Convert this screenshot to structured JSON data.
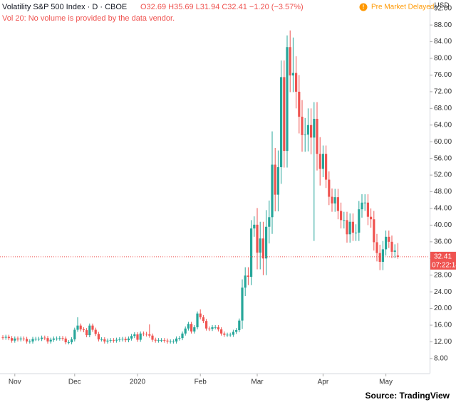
{
  "chart_data": {
    "type": "candlestick",
    "title": "Volatility S&P 500 Index · D · CBOE",
    "ohlc_text": "O32.69 H35.69 L31.94 C32.41 −1.20 (−3.57%)",
    "volume_note": "Vol 20: No volume is provided by the data vendor.",
    "status": "Pre Market Delayed",
    "currency": "USD",
    "last_price": {
      "value": 32.41,
      "label": "32.41"
    },
    "countdown": "07:22:14",
    "source": "Source: TradingView",
    "up_color": "#26a69a",
    "down_color": "#ef5350",
    "ylim": [
      4.4,
      94
    ],
    "yticks": [
      {
        "value": 8,
        "label": "8.00"
      },
      {
        "value": 12,
        "label": "12.00"
      },
      {
        "value": 16,
        "label": "16.00"
      },
      {
        "value": 20,
        "label": "20.00"
      },
      {
        "value": 24,
        "label": "24.00"
      },
      {
        "value": 28,
        "label": "28.00"
      },
      {
        "value": 32,
        "label": "32.00"
      },
      {
        "value": 36,
        "label": "36.00"
      },
      {
        "value": 40,
        "label": "40.00"
      },
      {
        "value": 44,
        "label": "44.00"
      },
      {
        "value": 48,
        "label": "48.00"
      },
      {
        "value": 52,
        "label": "52.00"
      },
      {
        "value": 56,
        "label": "56.00"
      },
      {
        "value": 60,
        "label": "60.00"
      },
      {
        "value": 64,
        "label": "64.00"
      },
      {
        "value": 68,
        "label": "68.00"
      },
      {
        "value": 72,
        "label": "72.00"
      },
      {
        "value": 76,
        "label": "76.00"
      },
      {
        "value": 80,
        "label": "80.00"
      },
      {
        "value": 84,
        "label": "84.00"
      },
      {
        "value": 88,
        "label": "88.00"
      },
      {
        "value": 92,
        "label": "92.00"
      }
    ],
    "categories": [
      null,
      null,
      null,
      null,
      "Nov",
      null,
      null,
      null,
      null,
      null,
      null,
      null,
      null,
      null,
      null,
      null,
      null,
      null,
      null,
      null,
      null,
      null,
      null,
      null,
      "Dec",
      null,
      null,
      null,
      null,
      null,
      null,
      null,
      null,
      null,
      null,
      null,
      null,
      null,
      null,
      null,
      null,
      null,
      null,
      null,
      null,
      "2020",
      null,
      null,
      null,
      null,
      null,
      null,
      null,
      null,
      null,
      null,
      null,
      null,
      null,
      null,
      null,
      null,
      null,
      null,
      null,
      null,
      "Feb",
      null,
      null,
      null,
      null,
      null,
      null,
      null,
      null,
      null,
      null,
      null,
      null,
      null,
      null,
      null,
      null,
      null,
      null,
      "Mar",
      null,
      null,
      null,
      null,
      null,
      null,
      null,
      null,
      null,
      null,
      null,
      null,
      null,
      null,
      null,
      null,
      null,
      null,
      null,
      null,
      null,
      "Apr",
      null,
      null,
      null,
      null,
      null,
      null,
      null,
      null,
      null,
      null,
      null,
      null,
      null,
      null,
      null,
      null,
      null,
      null,
      null,
      null,
      "May",
      null,
      null,
      null,
      null
    ],
    "open": [
      13.1,
      13.0,
      13.2,
      12.9,
      12.3,
      12.8,
      12.6,
      12.8,
      12.7,
      12.1,
      12.1,
      12.7,
      12.7,
      12.7,
      13.0,
      12.9,
      12.1,
      12.5,
      12.8,
      12.8,
      12.9,
      12.8,
      11.9,
      11.9,
      12.6,
      14.9,
      15.9,
      15.0,
      14.8,
      13.6,
      15.9,
      14.9,
      13.9,
      12.6,
      12.6,
      12.1,
      12.3,
      12.4,
      12.3,
      12.5,
      12.6,
      12.7,
      12.4,
      12.8,
      13.4,
      13.8,
      12.5,
      14.0,
      13.9,
      13.8,
      13.5,
      12.5,
      12.3,
      12.4,
      12.4,
      12.3,
      12.1,
      12.1,
      12.1,
      12.8,
      12.9,
      14.0,
      15.2,
      16.3,
      14.5,
      15.5,
      18.8,
      17.9,
      17.0,
      15.2,
      15.1,
      15.5,
      15.5,
      15.0,
      14.0,
      13.7,
      13.7,
      13.7,
      14.4,
      14.8,
      17.1,
      25.0,
      27.9,
      27.6,
      39.2,
      40.1,
      33.4,
      36.8,
      32.0,
      39.6,
      41.9,
      54.5,
      47.3,
      53.9,
      75.5,
      57.8,
      82.7,
      75.9,
      76.5,
      72.0,
      66.0,
      61.6,
      61.7,
      64.0,
      61.0,
      65.5,
      57.1,
      53.5,
      57.1,
      50.9,
      46.8,
      45.2,
      46.7,
      43.4,
      41.2,
      41.2,
      37.8,
      40.8,
      38.2,
      38.2,
      43.8,
      45.4,
      45.4,
      42.0,
      41.4,
      35.9,
      33.3,
      31.2,
      34.2,
      37.2,
      36.0,
      33.6,
      32.69
    ],
    "high": [
      13.6,
      13.7,
      13.7,
      13.4,
      13.3,
      13.3,
      13.3,
      13.3,
      13.2,
      12.6,
      13.2,
      13.2,
      13.2,
      13.5,
      13.5,
      13.4,
      13.0,
      13.3,
      13.3,
      13.4,
      13.4,
      13.3,
      12.4,
      13.1,
      15.4,
      17.9,
      16.4,
      15.5,
      15.3,
      16.4,
      16.4,
      15.4,
      14.4,
      13.1,
      13.1,
      12.8,
      12.9,
      12.9,
      13.0,
      13.1,
      13.2,
      13.2,
      13.3,
      13.9,
      14.3,
      14.3,
      14.5,
      14.5,
      14.4,
      16.2,
      14.0,
      13.0,
      12.9,
      12.9,
      12.9,
      12.8,
      12.6,
      12.6,
      13.3,
      13.4,
      14.5,
      15.7,
      16.8,
      16.8,
      16.0,
      19.3,
      19.8,
      18.4,
      17.5,
      15.7,
      16.0,
      16.0,
      16.0,
      15.5,
      14.5,
      14.2,
      14.2,
      14.9,
      15.3,
      17.6,
      27.0,
      29.9,
      29.9,
      41.2,
      42.1,
      44.1,
      40.8,
      40.8,
      43.6,
      45.9,
      62.5,
      58.5,
      57.9,
      79.5,
      79.5,
      85.5,
      86.7,
      85.0,
      80.5,
      76.0,
      70.0,
      65.7,
      68.0,
      68.0,
      69.5,
      69.5,
      61.1,
      59.1,
      59.1,
      52.9,
      48.8,
      48.7,
      48.7,
      45.4,
      43.2,
      43.2,
      42.8,
      42.8,
      40.2,
      45.8,
      47.4,
      47.4,
      47.4,
      44.0,
      43.4,
      37.9,
      35.3,
      36.2,
      38.7,
      38.7,
      37.5,
      35.4,
      35.69
    ],
    "low": [
      12.5,
      12.5,
      12.4,
      11.8,
      11.8,
      12.1,
      12.1,
      12.2,
      11.6,
      11.6,
      11.6,
      12.2,
      12.2,
      12.2,
      12.4,
      11.6,
      11.6,
      12.0,
      12.3,
      12.3,
      12.3,
      11.4,
      11.4,
      11.4,
      12.1,
      14.4,
      14.5,
      14.3,
      13.1,
      13.1,
      14.4,
      13.4,
      12.1,
      12.1,
      11.6,
      11.6,
      11.8,
      11.8,
      11.8,
      12.0,
      12.1,
      11.9,
      11.9,
      12.3,
      12.9,
      12.0,
      12.0,
      13.4,
      13.3,
      13.0,
      12.0,
      11.8,
      11.8,
      11.9,
      11.8,
      11.6,
      11.6,
      11.6,
      11.6,
      12.3,
      12.4,
      13.5,
      14.7,
      14.0,
      14.0,
      15.0,
      17.4,
      16.5,
      14.7,
      14.6,
      14.6,
      15.0,
      14.5,
      13.5,
      13.2,
      13.2,
      13.2,
      13.2,
      13.9,
      14.3,
      15.1,
      23.0,
      25.6,
      25.6,
      37.2,
      29.4,
      29.4,
      28.0,
      28.0,
      35.6,
      37.9,
      43.3,
      43.3,
      49.9,
      53.8,
      53.8,
      71.9,
      71.9,
      68.0,
      62.0,
      57.6,
      57.6,
      57.7,
      57.0,
      36.2,
      53.1,
      49.5,
      51.5,
      48.9,
      44.8,
      43.2,
      43.2,
      41.4,
      39.2,
      39.2,
      35.8,
      35.8,
      36.2,
      36.2,
      36.2,
      41.8,
      43.4,
      40.0,
      39.4,
      33.9,
      31.3,
      29.2,
      29.2,
      32.7,
      34.5,
      32.1,
      32.1,
      31.94
    ],
    "close": [
      13.0,
      13.2,
      12.9,
      12.3,
      12.8,
      12.6,
      12.8,
      12.7,
      12.1,
      12.1,
      12.7,
      12.7,
      12.7,
      13.0,
      12.9,
      12.1,
      12.5,
      12.8,
      12.8,
      12.9,
      12.8,
      11.9,
      11.9,
      12.6,
      14.9,
      15.9,
      15.0,
      14.8,
      13.6,
      15.9,
      14.9,
      13.9,
      12.6,
      12.6,
      12.1,
      12.3,
      12.4,
      12.3,
      12.5,
      12.6,
      12.7,
      12.4,
      12.8,
      13.4,
      13.8,
      12.5,
      14.0,
      13.9,
      13.8,
      13.5,
      12.5,
      12.3,
      12.4,
      12.4,
      12.3,
      12.1,
      12.1,
      12.1,
      12.8,
      12.9,
      14.0,
      15.2,
      16.3,
      14.5,
      15.5,
      18.8,
      17.9,
      17.0,
      15.2,
      15.1,
      15.5,
      15.5,
      15.0,
      14.0,
      13.7,
      13.7,
      13.7,
      14.4,
      14.8,
      17.1,
      25.0,
      27.9,
      27.6,
      39.2,
      40.1,
      33.4,
      36.8,
      32.0,
      39.6,
      41.9,
      54.5,
      47.3,
      53.9,
      75.5,
      57.8,
      82.7,
      75.9,
      76.5,
      72.0,
      66.0,
      61.6,
      61.7,
      64.0,
      61.0,
      65.5,
      57.1,
      53.5,
      57.1,
      50.9,
      46.8,
      45.2,
      46.7,
      43.4,
      41.2,
      41.2,
      37.8,
      40.8,
      38.2,
      38.2,
      43.8,
      45.4,
      45.4,
      42.0,
      41.4,
      35.9,
      33.3,
      31.2,
      34.2,
      37.2,
      36.0,
      33.6,
      33.9,
      32.41
    ]
  }
}
